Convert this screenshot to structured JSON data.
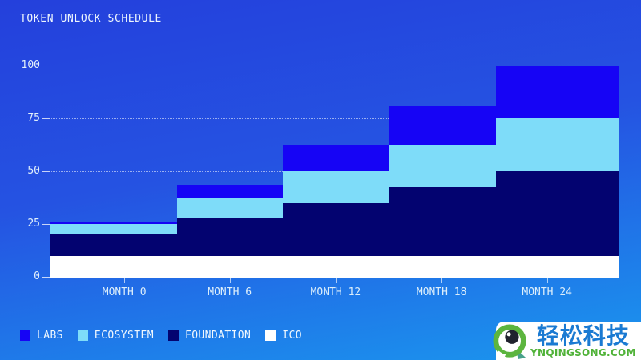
{
  "title": "TOKEN UNLOCK SCHEDULE",
  "colors": {
    "background_top": "#2440dc",
    "background_bottom": "#1a97ee",
    "axis": "#ffffff",
    "grid_dots": "#ffffff",
    "labs": "#1604f5",
    "ecosystem": "#7edcf9",
    "foundation": "#030370",
    "ico": "#ffffff"
  },
  "chart_data": {
    "type": "area",
    "variant": "stacked-step",
    "title": "TOKEN UNLOCK SCHEDULE",
    "categories": [
      "MONTH 0",
      "MONTH 6",
      "MONTH 12",
      "MONTH 18",
      "MONTH 24"
    ],
    "series": [
      {
        "name": "ICO",
        "color": "#ffffff",
        "values": [
          10,
          10,
          10,
          10,
          10
        ]
      },
      {
        "name": "FOUNDATION",
        "color": "#030370",
        "values": [
          10,
          17.5,
          25,
          32.5,
          40
        ]
      },
      {
        "name": "ECOSYSTEM",
        "color": "#7edcf9",
        "values": [
          5,
          10,
          15,
          20,
          25
        ]
      },
      {
        "name": "LABS",
        "color": "#1604f5",
        "values": [
          0,
          6.25,
          12.5,
          18.75,
          25
        ]
      }
    ],
    "stack_order_bottom_to_top": [
      "ICO",
      "FOUNDATION",
      "ECOSYSTEM",
      "LABS"
    ],
    "stack_totals": [
      25,
      43.75,
      62.5,
      81.25,
      100
    ],
    "ylim": [
      0,
      100
    ],
    "yticks": [
      0,
      25,
      50,
      75,
      100
    ],
    "grid": "horizontal-dotted",
    "legend_position": "bottom-left",
    "layout": {
      "col_bounds_pct": [
        0,
        22.4,
        40.9,
        59.5,
        78.3,
        100
      ],
      "tick_x_pct": [
        13.1,
        31.6,
        50.2,
        68.8,
        87.3
      ]
    }
  },
  "legend": {
    "items": [
      {
        "label": "LABS",
        "color": "#1604f5"
      },
      {
        "label": "ECOSYSTEM",
        "color": "#7edcf9"
      },
      {
        "label": "FOUNDATION",
        "color": "#030370"
      },
      {
        "label": "ICO",
        "color": "#ffffff"
      }
    ]
  },
  "watermark": {
    "brand_name": "轻松科技",
    "brand_site": "YNQINGSONG.COM",
    "green": "#50b238",
    "blue": "#1a7ad2"
  }
}
